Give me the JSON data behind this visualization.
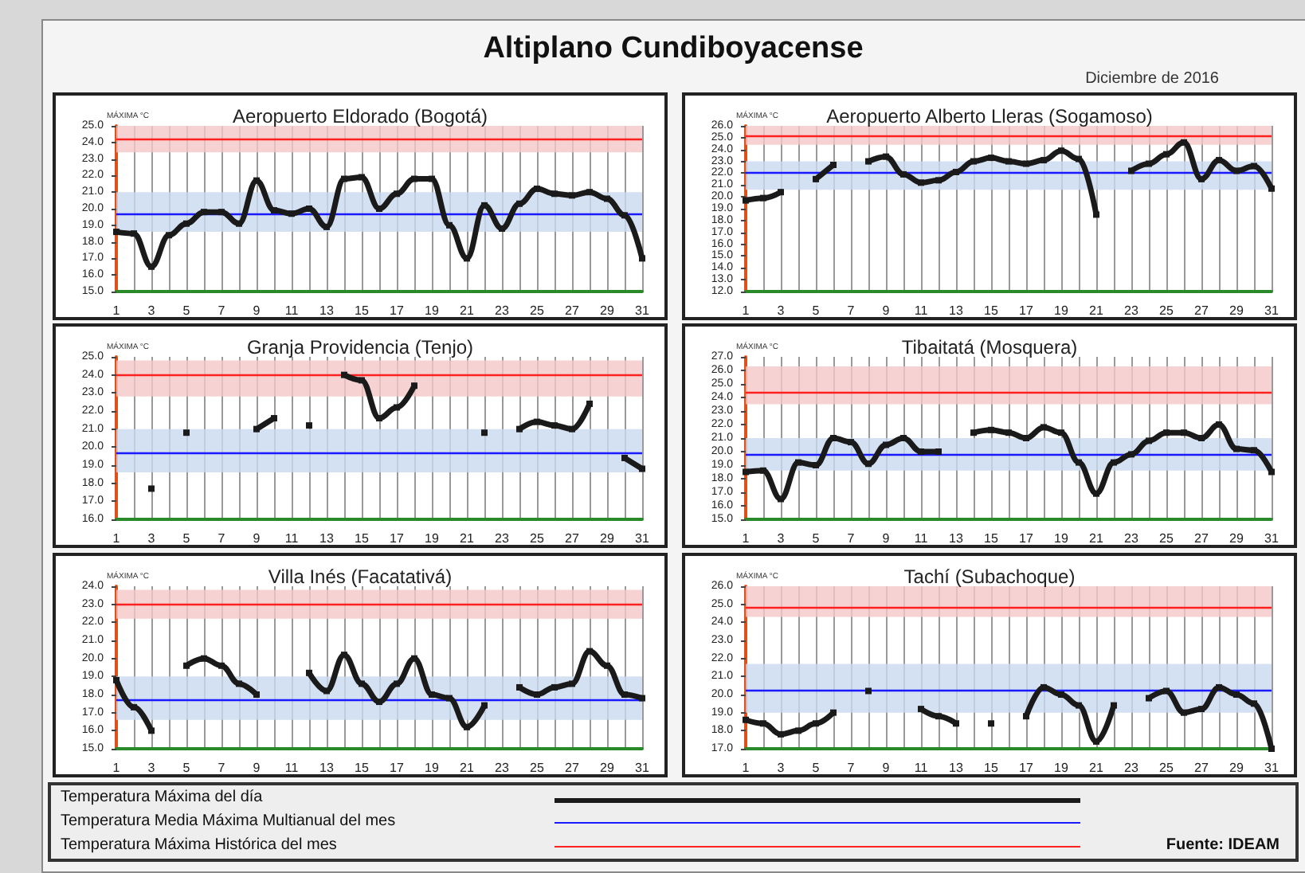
{
  "chart_data": [
    {
      "type": "other",
      "title": "Altiplano Cundiboyacense",
      "subtitle": "Diciembre de 2016"
    },
    {
      "type": "line",
      "title": "Aeropuerto Eldorado (Bogotá)",
      "ylabel": "MÁXIMA °C",
      "grid": "x",
      "marker": "square",
      "x": [
        1,
        2,
        3,
        4,
        5,
        6,
        7,
        8,
        9,
        10,
        11,
        12,
        13,
        14,
        15,
        16,
        17,
        18,
        19,
        20,
        21,
        22,
        23,
        24,
        25,
        26,
        27,
        28,
        29,
        30,
        31
      ],
      "xlim": [
        1,
        31
      ],
      "xticks": [
        1,
        {
          "value": 2,
          "label": null
        },
        3,
        {
          "value": 4,
          "label": null
        },
        5,
        {
          "value": 6,
          "label": null
        },
        7,
        {
          "value": 8,
          "label": null
        },
        9,
        {
          "value": 10,
          "label": null
        },
        11,
        {
          "value": 12,
          "label": null
        },
        13,
        {
          "value": 14,
          "label": null
        },
        15,
        {
          "value": 16,
          "label": null
        },
        17,
        {
          "value": 18,
          "label": null
        },
        19,
        {
          "value": 20,
          "label": null
        },
        21,
        {
          "value": 22,
          "label": null
        },
        23,
        {
          "value": 24,
          "label": null
        },
        25,
        {
          "value": 26,
          "label": null
        },
        27,
        {
          "value": 28,
          "label": null
        },
        29,
        {
          "value": 30,
          "label": null
        },
        31
      ],
      "ylim": [
        15,
        25
      ],
      "yticks": [
        {
          "value": 15,
          "label": "15.0"
        },
        {
          "value": 16,
          "label": "16.0"
        },
        {
          "value": 17,
          "label": "17.0"
        },
        {
          "value": 18,
          "label": "18.0"
        },
        {
          "value": 19,
          "label": "19.0"
        },
        {
          "value": 20,
          "label": "20.0"
        },
        {
          "value": 21,
          "label": "21.0"
        },
        {
          "value": 22,
          "label": "22.0"
        },
        {
          "value": 23,
          "label": "23.0"
        },
        {
          "value": 24,
          "label": "24.0"
        },
        {
          "value": 25,
          "label": "25.0"
        }
      ],
      "series": [
        {
          "color": "#1a1a1a",
          "values": [
            18.6,
            18.5,
            16.5,
            18.4,
            19.1,
            19.8,
            19.8,
            19.1,
            21.7,
            19.9,
            19.7,
            20.0,
            18.9,
            21.8,
            21.9,
            20.0,
            20.9,
            21.8,
            21.8,
            19.0,
            17.0,
            20.2,
            18.8,
            20.3,
            21.2,
            20.9,
            20.8,
            21.0,
            20.6,
            19.6,
            17.0
          ]
        }
      ],
      "ref_lines": [
        {
          "axis": "y",
          "value": 24.2,
          "color": "#ff2020"
        },
        {
          "axis": "y",
          "value": 19.7,
          "color": "#1a1aff"
        }
      ],
      "bands": [
        {
          "axis": "y",
          "from": 23.4,
          "to": 25.0,
          "color": "#f4c7c7"
        },
        {
          "axis": "y",
          "from": 18.6,
          "to": 21.0,
          "color": "#c9d9ef"
        }
      ]
    },
    {
      "type": "line",
      "title": "Aeropuerto Alberto Lleras (Sogamoso)",
      "ylabel": "MÁXIMA °C",
      "grid": "x",
      "marker": "square",
      "x": [
        1,
        2,
        3,
        4,
        5,
        6,
        7,
        8,
        9,
        10,
        11,
        12,
        13,
        14,
        15,
        16,
        17,
        18,
        19,
        20,
        21,
        22,
        23,
        24,
        25,
        26,
        27,
        28,
        29,
        30,
        31
      ],
      "xlim": [
        1,
        31
      ],
      "xticks": [
        1,
        {
          "value": 2,
          "label": null
        },
        3,
        {
          "value": 4,
          "label": null
        },
        5,
        {
          "value": 6,
          "label": null
        },
        7,
        {
          "value": 8,
          "label": null
        },
        9,
        {
          "value": 10,
          "label": null
        },
        11,
        {
          "value": 12,
          "label": null
        },
        13,
        {
          "value": 14,
          "label": null
        },
        15,
        {
          "value": 16,
          "label": null
        },
        17,
        {
          "value": 18,
          "label": null
        },
        19,
        {
          "value": 20,
          "label": null
        },
        21,
        {
          "value": 22,
          "label": null
        },
        23,
        {
          "value": 24,
          "label": null
        },
        25,
        {
          "value": 26,
          "label": null
        },
        27,
        {
          "value": 28,
          "label": null
        },
        29,
        {
          "value": 30,
          "label": null
        },
        31
      ],
      "ylim": [
        12,
        26
      ],
      "yticks": [
        {
          "value": 12,
          "label": "12.0"
        },
        {
          "value": 13,
          "label": "13.0"
        },
        {
          "value": 14,
          "label": "14.0"
        },
        {
          "value": 15,
          "label": "15.0"
        },
        {
          "value": 16,
          "label": "16.0"
        },
        {
          "value": 17,
          "label": "17.0"
        },
        {
          "value": 18,
          "label": "18.0"
        },
        {
          "value": 19,
          "label": "19.0"
        },
        {
          "value": 20,
          "label": "20.0"
        },
        {
          "value": 21,
          "label": "21.0"
        },
        {
          "value": 22,
          "label": "22.0"
        },
        {
          "value": 23,
          "label": "23.0"
        },
        {
          "value": 24,
          "label": "24.0"
        },
        {
          "value": 25,
          "label": "25.0"
        },
        {
          "value": 26,
          "label": "26.0"
        }
      ],
      "series": [
        {
          "color": "#1a1a1a",
          "values": [
            19.7,
            19.9,
            20.4,
            null,
            21.5,
            22.7,
            null,
            23.0,
            23.4,
            21.9,
            21.2,
            21.4,
            22.1,
            23.0,
            23.3,
            23.0,
            22.8,
            23.1,
            23.9,
            23.2,
            18.5,
            null,
            22.2,
            22.8,
            23.6,
            24.6,
            21.5,
            23.1,
            22.2,
            22.6,
            20.7
          ]
        }
      ],
      "ref_lines": [
        {
          "axis": "y",
          "value": 25.2,
          "color": "#ff2020"
        },
        {
          "axis": "y",
          "value": 22.0,
          "color": "#1a1aff"
        }
      ],
      "bands": [
        {
          "axis": "y",
          "from": 24.4,
          "to": 26.0,
          "color": "#f4c7c7"
        },
        {
          "axis": "y",
          "from": 20.6,
          "to": 23.0,
          "color": "#c9d9ef"
        }
      ]
    },
    {
      "type": "line",
      "title": "Granja Providencia (Tenjo)",
      "ylabel": "MÁXIMA °C",
      "grid": "x",
      "marker": "square",
      "xlim": [
        1,
        31
      ],
      "xticks": [
        1,
        {
          "value": 2,
          "label": null
        },
        3,
        {
          "value": 4,
          "label": null
        },
        5,
        {
          "value": 6,
          "label": null
        },
        7,
        {
          "value": 8,
          "label": null
        },
        9,
        {
          "value": 10,
          "label": null
        },
        11,
        {
          "value": 12,
          "label": null
        },
        13,
        {
          "value": 14,
          "label": null
        },
        15,
        {
          "value": 16,
          "label": null
        },
        17,
        {
          "value": 18,
          "label": null
        },
        19,
        {
          "value": 20,
          "label": null
        },
        21,
        {
          "value": 22,
          "label": null
        },
        23,
        {
          "value": 24,
          "label": null
        },
        25,
        {
          "value": 26,
          "label": null
        },
        27,
        {
          "value": 28,
          "label": null
        },
        29,
        {
          "value": 30,
          "label": null
        },
        31
      ],
      "ylim": [
        16,
        25
      ],
      "yticks": [
        {
          "value": 16,
          "label": "16.0"
        },
        {
          "value": 17,
          "label": "17.0"
        },
        {
          "value": 18,
          "label": "18.0"
        },
        {
          "value": 19,
          "label": "19.0"
        },
        {
          "value": 20,
          "label": "20.0"
        },
        {
          "value": 21,
          "label": "21.0"
        },
        {
          "value": 22,
          "label": "22.0"
        },
        {
          "value": 23,
          "label": "23.0"
        },
        {
          "value": 24,
          "label": "24.0"
        },
        {
          "value": 25,
          "label": "25.0"
        }
      ],
      "series": [
        {
          "color": "#1a1a1a",
          "x": [
            3,
            4,
            5,
            6,
            7,
            8,
            9,
            10,
            11,
            12,
            13,
            14,
            15,
            16,
            17,
            18,
            19,
            20,
            21,
            22,
            23,
            24,
            25,
            26,
            27,
            28,
            29,
            30,
            31
          ],
          "values": [
            17.7,
            null,
            20.8,
            null,
            null,
            null,
            21.0,
            21.6,
            null,
            21.2,
            null,
            24.0,
            23.7,
            21.6,
            22.2,
            23.4,
            null,
            null,
            null,
            20.8,
            null,
            21.0,
            21.4,
            21.2,
            21.0,
            22.4,
            null,
            19.4,
            18.8
          ]
        }
      ],
      "ref_lines": [
        {
          "axis": "y",
          "value": 24.0,
          "color": "#ff2020"
        },
        {
          "axis": "y",
          "value": 19.7,
          "color": "#1a1aff"
        }
      ],
      "bands": [
        {
          "axis": "y",
          "from": 22.8,
          "to": 24.8,
          "color": "#f4c7c7"
        },
        {
          "axis": "y",
          "from": 18.6,
          "to": 21.0,
          "color": "#c9d9ef"
        }
      ]
    },
    {
      "type": "line",
      "title": "Tibaitatá (Mosquera)",
      "ylabel": "MÁXIMA °C",
      "grid": "x",
      "marker": "square",
      "x": [
        1,
        2,
        3,
        4,
        5,
        6,
        7,
        8,
        9,
        10,
        11,
        12,
        13,
        14,
        15,
        16,
        17,
        18,
        19,
        20,
        21,
        22,
        23,
        24,
        25,
        26,
        27,
        28,
        29,
        30,
        31
      ],
      "xlim": [
        1,
        31
      ],
      "xticks": [
        1,
        {
          "value": 2,
          "label": null
        },
        3,
        {
          "value": 4,
          "label": null
        },
        5,
        {
          "value": 6,
          "label": null
        },
        7,
        {
          "value": 8,
          "label": null
        },
        9,
        {
          "value": 10,
          "label": null
        },
        11,
        {
          "value": 12,
          "label": null
        },
        13,
        {
          "value": 14,
          "label": null
        },
        15,
        {
          "value": 16,
          "label": null
        },
        17,
        {
          "value": 18,
          "label": null
        },
        19,
        {
          "value": 20,
          "label": null
        },
        21,
        {
          "value": 22,
          "label": null
        },
        23,
        {
          "value": 24,
          "label": null
        },
        25,
        {
          "value": 26,
          "label": null
        },
        27,
        {
          "value": 28,
          "label": null
        },
        29,
        {
          "value": 30,
          "label": null
        },
        31
      ],
      "ylim": [
        15,
        27
      ],
      "yticks": [
        {
          "value": 15,
          "label": "15.0"
        },
        {
          "value": 16,
          "label": "16.0"
        },
        {
          "value": 17,
          "label": "17.0"
        },
        {
          "value": 18,
          "label": "18.0"
        },
        {
          "value": 19,
          "label": "19.0"
        },
        {
          "value": 20,
          "label": "20.0"
        },
        {
          "value": 21,
          "label": "21.0"
        },
        {
          "value": 22,
          "label": "22.0"
        },
        {
          "value": 23,
          "label": "23.0"
        },
        {
          "value": 24,
          "label": "24.0"
        },
        {
          "value": 25,
          "label": "25.0"
        },
        {
          "value": 26,
          "label": "26.0"
        },
        {
          "value": 27,
          "label": "27.0"
        }
      ],
      "series": [
        {
          "color": "#1a1a1a",
          "values": [
            18.5,
            18.6,
            16.5,
            19.2,
            19.0,
            21.0,
            20.7,
            19.1,
            20.5,
            21.0,
            20.0,
            20.0,
            null,
            21.4,
            21.6,
            21.4,
            21.0,
            21.8,
            21.4,
            19.2,
            16.9,
            19.2,
            19.8,
            20.8,
            21.4,
            21.4,
            21.0,
            22.0,
            20.2,
            20.1,
            18.5
          ]
        }
      ],
      "ref_lines": [
        {
          "axis": "y",
          "value": 24.4,
          "color": "#ff2020"
        },
        {
          "axis": "y",
          "value": 19.8,
          "color": "#1a1aff"
        }
      ],
      "bands": [
        {
          "axis": "y",
          "from": 23.5,
          "to": 26.3,
          "color": "#f4c7c7"
        },
        {
          "axis": "y",
          "from": 18.6,
          "to": 21.0,
          "color": "#c9d9ef"
        }
      ]
    },
    {
      "type": "line",
      "title": "Villa Inés (Facatativá)",
      "ylabel": "MÁXIMA °C",
      "grid": "x",
      "marker": "square",
      "x": [
        1,
        2,
        3,
        4,
        5,
        6,
        7,
        8,
        9,
        10,
        11,
        12,
        13,
        14,
        15,
        16,
        17,
        18,
        19,
        20,
        21,
        22,
        23,
        24,
        25,
        26,
        27,
        28,
        29,
        30,
        31
      ],
      "xlim": [
        1,
        31
      ],
      "xticks": [
        1,
        {
          "value": 2,
          "label": null
        },
        3,
        {
          "value": 4,
          "label": null
        },
        5,
        {
          "value": 6,
          "label": null
        },
        7,
        {
          "value": 8,
          "label": null
        },
        9,
        {
          "value": 10,
          "label": null
        },
        11,
        {
          "value": 12,
          "label": null
        },
        13,
        {
          "value": 14,
          "label": null
        },
        15,
        {
          "value": 16,
          "label": null
        },
        17,
        {
          "value": 18,
          "label": null
        },
        19,
        {
          "value": 20,
          "label": null
        },
        21,
        {
          "value": 22,
          "label": null
        },
        23,
        {
          "value": 24,
          "label": null
        },
        25,
        {
          "value": 26,
          "label": null
        },
        27,
        {
          "value": 28,
          "label": null
        },
        29,
        {
          "value": 30,
          "label": null
        },
        31
      ],
      "ylim": [
        15,
        24
      ],
      "yticks": [
        {
          "value": 15,
          "label": "15.0"
        },
        {
          "value": 16,
          "label": "16.0"
        },
        {
          "value": 17,
          "label": "17.0"
        },
        {
          "value": 18,
          "label": "18.0"
        },
        {
          "value": 19,
          "label": "19.0"
        },
        {
          "value": 20,
          "label": "20.0"
        },
        {
          "value": 21,
          "label": "21.0"
        },
        {
          "value": 22,
          "label": "22.0"
        },
        {
          "value": 23,
          "label": "23.0"
        },
        {
          "value": 24,
          "label": "24.0"
        }
      ],
      "series": [
        {
          "color": "#1a1a1a",
          "values": [
            18.8,
            17.3,
            16.0,
            null,
            19.6,
            20.0,
            19.6,
            18.6,
            18.0,
            null,
            null,
            19.2,
            18.2,
            20.2,
            18.6,
            17.6,
            18.6,
            20.0,
            18.0,
            17.8,
            16.2,
            17.4,
            null,
            18.4,
            18.0,
            18.4,
            18.6,
            20.4,
            19.6,
            18.0,
            17.8
          ]
        }
      ],
      "ref_lines": [
        {
          "axis": "y",
          "value": 23.0,
          "color": "#ff2020"
        },
        {
          "axis": "y",
          "value": 17.7,
          "color": "#1a1aff"
        }
      ],
      "bands": [
        {
          "axis": "y",
          "from": 22.2,
          "to": 23.8,
          "color": "#f4c7c7"
        },
        {
          "axis": "y",
          "from": 16.6,
          "to": 19.0,
          "color": "#c9d9ef"
        }
      ]
    },
    {
      "type": "line",
      "title": "Tachí (Subachoque)",
      "ylabel": "MÁXIMA °C",
      "grid": "x",
      "marker": "square",
      "x": [
        1,
        2,
        3,
        4,
        5,
        6,
        7,
        8,
        9,
        10,
        11,
        12,
        13,
        14,
        15,
        16,
        17,
        18,
        19,
        20,
        21,
        22,
        23,
        24,
        25,
        26,
        27,
        28,
        29,
        30,
        31
      ],
      "xlim": [
        1,
        31
      ],
      "xticks": [
        1,
        {
          "value": 2,
          "label": null
        },
        3,
        {
          "value": 4,
          "label": null
        },
        5,
        {
          "value": 6,
          "label": null
        },
        7,
        {
          "value": 8,
          "label": null
        },
        9,
        {
          "value": 10,
          "label": null
        },
        11,
        {
          "value": 12,
          "label": null
        },
        13,
        {
          "value": 14,
          "label": null
        },
        15,
        {
          "value": 16,
          "label": null
        },
        17,
        {
          "value": 18,
          "label": null
        },
        19,
        {
          "value": 20,
          "label": null
        },
        21,
        {
          "value": 22,
          "label": null
        },
        23,
        {
          "value": 24,
          "label": null
        },
        25,
        {
          "value": 26,
          "label": null
        },
        27,
        {
          "value": 28,
          "label": null
        },
        29,
        {
          "value": 30,
          "label": null
        },
        31
      ],
      "ylim": [
        17,
        26
      ],
      "yticks": [
        {
          "value": 17,
          "label": "17.0"
        },
        {
          "value": 18,
          "label": "18.0"
        },
        {
          "value": 19,
          "label": "19.0"
        },
        {
          "value": 20,
          "label": "20.0"
        },
        {
          "value": 21,
          "label": "21.0"
        },
        {
          "value": 22,
          "label": "22.0"
        },
        {
          "value": 23,
          "label": "23.0"
        },
        {
          "value": 24,
          "label": "24.0"
        },
        {
          "value": 25,
          "label": "25.0"
        },
        {
          "value": 26,
          "label": "26.0"
        }
      ],
      "series": [
        {
          "color": "#1a1a1a",
          "values": [
            18.6,
            18.4,
            17.8,
            18.0,
            18.4,
            19.0,
            null,
            20.2,
            null,
            null,
            19.2,
            18.8,
            18.4,
            null,
            18.4,
            null,
            18.8,
            20.4,
            20.0,
            19.4,
            17.4,
            19.4,
            null,
            19.8,
            20.2,
            19.0,
            19.2,
            20.4,
            20.0,
            19.5,
            17.0
          ]
        }
      ],
      "ref_lines": [
        {
          "axis": "y",
          "value": 24.8,
          "color": "#ff2020"
        },
        {
          "axis": "y",
          "value": 20.2,
          "color": "#1a1aff"
        }
      ],
      "bands": [
        {
          "axis": "y",
          "from": 24.3,
          "to": 26.0,
          "color": "#f4c7c7"
        },
        {
          "axis": "y",
          "from": 19.0,
          "to": 21.7,
          "color": "#c9d9ef"
        }
      ]
    },
    {
      "type": "other",
      "annotations": [
        "Temperatura Máxima del día",
        "Temperatura Media Máxima Multianual del mes",
        "Temperatura Máxima Histórica del mes",
        "Fuente: IDEAM"
      ]
    }
  ]
}
